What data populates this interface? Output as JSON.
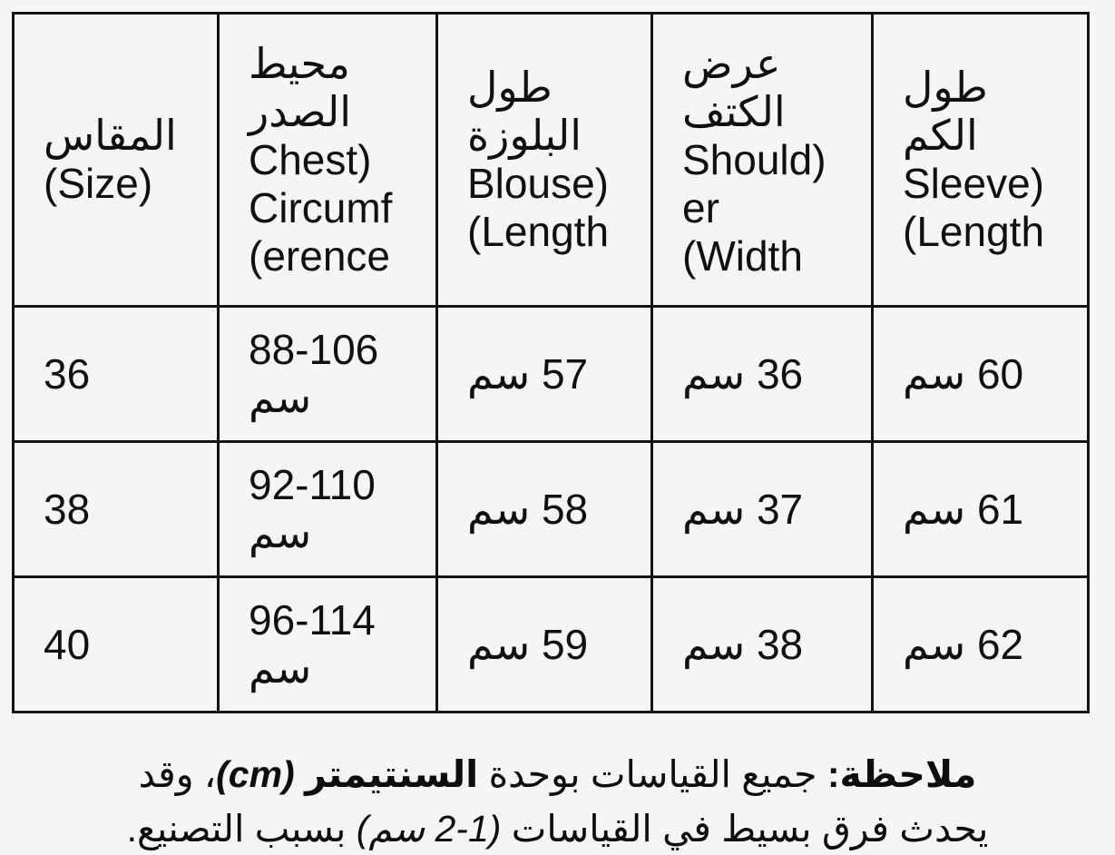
{
  "page": {
    "background_color": "#f5f5f6",
    "text_color": "#101010",
    "border_color": "#141414",
    "language": "Arabic (RTL)"
  },
  "table": {
    "columns": [
      {
        "key": "size",
        "header": "المقاس (Size)"
      },
      {
        "key": "chest_circumference",
        "header": "محيط الصدر (Chest Circumference)"
      },
      {
        "key": "blouse_length",
        "header": "طول البلوزة (Blouse Length)"
      },
      {
        "key": "shoulder_width",
        "header": "عرض الكتف (Shoulder Width)"
      },
      {
        "key": "sleeve_length",
        "header": "طول الكم (Sleeve Length)"
      }
    ],
    "rows": [
      {
        "cells": [
          "36",
          "88-106 سم",
          "57 سم",
          "36 سم",
          "60 سم"
        ]
      },
      {
        "cells": [
          "38",
          "92-110 سم",
          "58 سم",
          "37 سم",
          "61 سم"
        ]
      },
      {
        "cells": [
          "40",
          "96-114 سم",
          "59 سم",
          "38 سم",
          "62 سم"
        ]
      }
    ],
    "unit": "سم"
  },
  "note": {
    "full_text": "ملاحظة: جميع القياسات بوحدة السنتيمتر (cm)، وقد يحدث فرق بسيط في القياسات (1-2 سم) بسبب التصنيع.",
    "lines": [
      {
        "segments": [
          {
            "text": "ملاحظة:",
            "style": "bold"
          },
          {
            "text": " جميع القياسات بوحدة ",
            "style": "normal"
          },
          {
            "text": "السنتيمتر",
            "style": "bold"
          },
          {
            "text": " (cm)",
            "style": "bold-italic"
          },
          {
            "text": "، وقد",
            "style": "normal"
          }
        ]
      },
      {
        "segments": [
          {
            "text": "يحدث فرق بسيط في القياسات ",
            "style": "normal"
          },
          {
            "text": "(1-2 سم)",
            "style": "italic"
          },
          {
            "text": " بسبب التصنيع.",
            "style": "normal"
          }
        ]
      }
    ]
  }
}
